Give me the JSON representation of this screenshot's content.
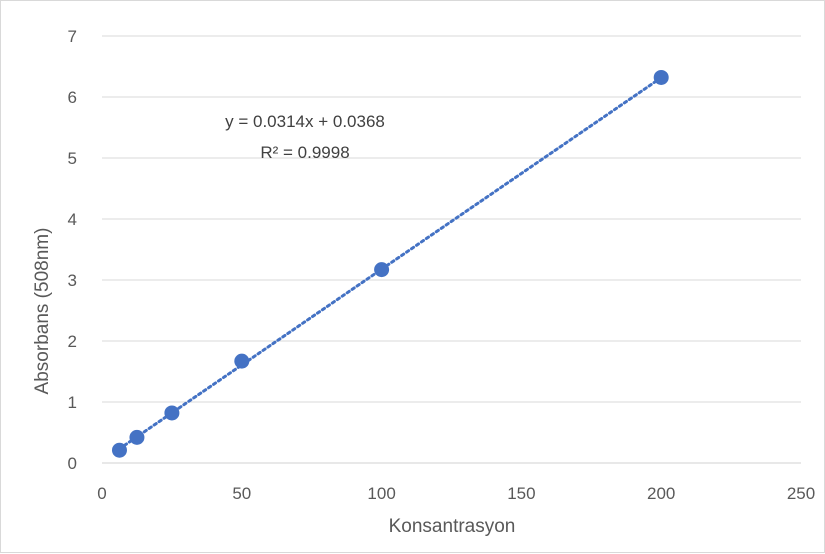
{
  "chart_data": {
    "type": "scatter",
    "xlabel": "Konsantrasyon",
    "ylabel": "Absorbans (508nm)",
    "xlim": [
      0,
      250
    ],
    "ylim": [
      0,
      7
    ],
    "xticks": [
      "0",
      "50",
      "100",
      "150",
      "200",
      "250"
    ],
    "yticks": [
      "0",
      "1",
      "2",
      "3",
      "4",
      "5",
      "6",
      "7"
    ],
    "grid": "horizontal",
    "legend": "none",
    "series": [
      {
        "x": [
          6.25,
          12.5,
          25,
          50,
          100,
          200
        ],
        "y": [
          0.21,
          0.42,
          0.82,
          1.67,
          3.17,
          6.32
        ]
      }
    ],
    "trendline": {
      "type": "linear",
      "style": "dotted",
      "slope": 0.0314,
      "intercept": 0.0368,
      "equation": "y = 0.0314x + 0.0368",
      "r_squared": "R² = 0.9998"
    },
    "colors": {
      "marker": "#4472c4",
      "trendline": "#4472c4",
      "grid": "#d9d9d9",
      "axis": "#d9d9d9"
    }
  }
}
